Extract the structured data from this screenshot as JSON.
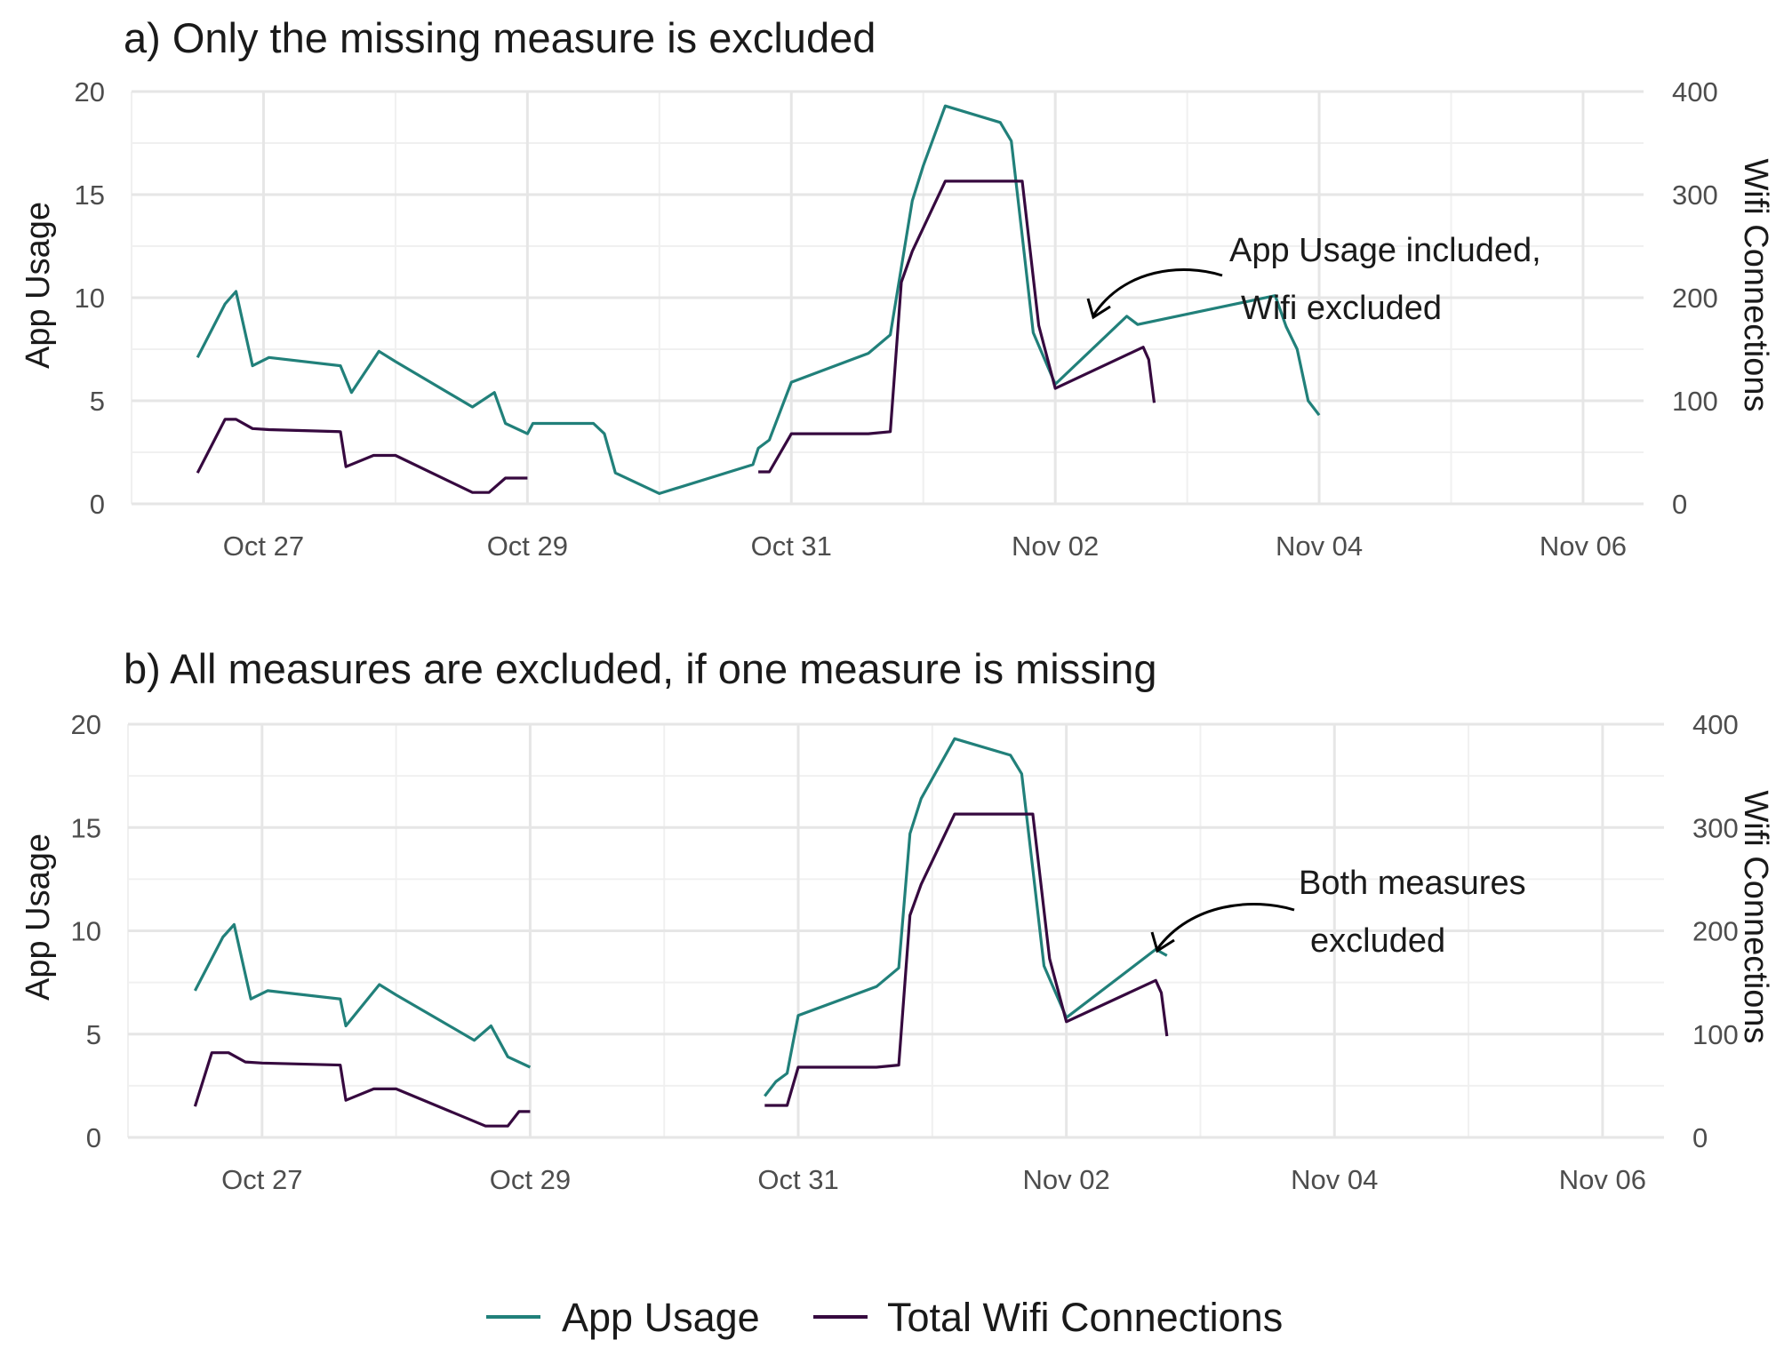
{
  "colors": {
    "app": "#21807a",
    "wifi": "#36093f"
  },
  "legend": {
    "position": "bottom",
    "items": [
      {
        "key": "app",
        "label": "App Usage"
      },
      {
        "key": "wifi",
        "label": "Total Wifi Connections"
      }
    ]
  },
  "chart_data": [
    {
      "type": "line",
      "title": "a) Only the missing measure is excluded",
      "ylabel": "App Usage",
      "y2label": "Wifi Connections",
      "ylim": [
        0,
        20
      ],
      "y2lim": [
        0,
        400
      ],
      "yticks": [
        0,
        5,
        10,
        15,
        20
      ],
      "y2ticks": [
        0,
        100,
        200,
        300,
        400
      ],
      "xlim": [
        "2023-10-26 00:00",
        "2023-11-06 11:00"
      ],
      "xticks": [
        {
          "at": "2023-10-27 00:00",
          "label": "Oct 27"
        },
        {
          "at": "2023-10-29 00:00",
          "label": "Oct 29"
        },
        {
          "at": "2023-10-31 00:00",
          "label": "Oct 31"
        },
        {
          "at": "2023-11-02 00:00",
          "label": "Nov 02"
        },
        {
          "at": "2023-11-04 00:00",
          "label": "Nov 04"
        },
        {
          "at": "2023-11-06 00:00",
          "label": "Nov 06"
        }
      ],
      "grid": true,
      "series": [
        {
          "name": "App Usage",
          "key": "app",
          "axis": "left",
          "segments": [
            [
              [
                "2023-10-26 12:00",
                7.1
              ],
              [
                "2023-10-26 17:00",
                9.7
              ],
              [
                "2023-10-26 19:00",
                10.3
              ],
              [
                "2023-10-26 22:00",
                6.7
              ],
              [
                "2023-10-27 01:00",
                7.1
              ],
              [
                "2023-10-27 14:00",
                6.7
              ],
              [
                "2023-10-27 16:00",
                5.4
              ],
              [
                "2023-10-27 21:00",
                7.4
              ],
              [
                "2023-10-28 00:00",
                6.9
              ],
              [
                "2023-10-28 14:00",
                4.7
              ],
              [
                "2023-10-28 18:00",
                5.4
              ],
              [
                "2023-10-28 20:00",
                3.9
              ],
              [
                "2023-10-29 00:00",
                3.4
              ],
              [
                "2023-10-29 01:00",
                3.9
              ],
              [
                "2023-10-29 12:00",
                3.9
              ],
              [
                "2023-10-29 14:00",
                3.4
              ],
              [
                "2023-10-29 16:00",
                1.5
              ],
              [
                "2023-10-30 00:00",
                0.5
              ],
              [
                "2023-10-30 17:00",
                1.9
              ],
              [
                "2023-10-30 18:00",
                2.7
              ],
              [
                "2023-10-30 20:00",
                3.1
              ],
              [
                "2023-10-31 00:00",
                5.9
              ],
              [
                "2023-10-31 14:00",
                7.3
              ],
              [
                "2023-10-31 18:00",
                8.2
              ],
              [
                "2023-10-31 22:00",
                14.7
              ],
              [
                "2023-11-01 00:00",
                16.4
              ],
              [
                "2023-11-01 04:00",
                19.3
              ],
              [
                "2023-11-01 14:00",
                18.5
              ],
              [
                "2023-11-01 16:00",
                17.6
              ],
              [
                "2023-11-01 18:00",
                13.0
              ],
              [
                "2023-11-01 20:00",
                8.3
              ],
              [
                "2023-11-02 00:00",
                5.8
              ],
              [
                "2023-11-02 13:00",
                9.1
              ],
              [
                "2023-11-02 15:00",
                8.7
              ],
              [
                "2023-11-03 16:00",
                10.1
              ],
              [
                "2023-11-03 18:00",
                8.6
              ],
              [
                "2023-11-03 20:00",
                7.5
              ],
              [
                "2023-11-03 22:00",
                5.0
              ],
              [
                "2023-11-04 00:00",
                4.3
              ]
            ]
          ]
        },
        {
          "name": "Total Wifi Connections",
          "key": "wifi",
          "axis": "right",
          "segments": [
            [
              [
                "2023-10-26 12:00",
                30
              ],
              [
                "2023-10-26 17:00",
                82
              ],
              [
                "2023-10-26 19:00",
                82
              ],
              [
                "2023-10-26 22:00",
                73
              ],
              [
                "2023-10-27 01:00",
                72
              ],
              [
                "2023-10-27 14:00",
                70
              ],
              [
                "2023-10-27 15:00",
                36
              ],
              [
                "2023-10-27 20:00",
                47
              ],
              [
                "2023-10-28 00:00",
                47
              ],
              [
                "2023-10-28 14:00",
                11
              ],
              [
                "2023-10-28 17:00",
                11
              ],
              [
                "2023-10-28 20:00",
                25
              ],
              [
                "2023-10-29 00:00",
                25
              ]
            ],
            [
              [
                "2023-10-30 18:00",
                31
              ],
              [
                "2023-10-30 20:00",
                31
              ],
              [
                "2023-10-31 00:00",
                68
              ],
              [
                "2023-10-31 14:00",
                68
              ],
              [
                "2023-10-31 18:00",
                70
              ],
              [
                "2023-10-31 20:00",
                215
              ],
              [
                "2023-10-31 22:00",
                245
              ],
              [
                "2023-11-01 04:00",
                313
              ],
              [
                "2023-11-01 18:00",
                313
              ],
              [
                "2023-11-01 21:00",
                173
              ],
              [
                "2023-11-02 00:00",
                112
              ],
              [
                "2023-11-02 16:00",
                152
              ],
              [
                "2023-11-02 17:00",
                140
              ],
              [
                "2023-11-02 18:00",
                98
              ]
            ]
          ]
        }
      ],
      "annotation": {
        "lines": [
          "App Usage included,",
          "Wifi excluded"
        ]
      }
    },
    {
      "type": "line",
      "title": "b) All measures are excluded, if one measure is missing",
      "ylabel": "App Usage",
      "y2label": "Wifi Connections",
      "ylim": [
        0,
        20
      ],
      "y2lim": [
        0,
        400
      ],
      "yticks": [
        0,
        5,
        10,
        15,
        20
      ],
      "y2ticks": [
        0,
        100,
        200,
        300,
        400
      ],
      "xlim": [
        "2023-10-26 00:00",
        "2023-11-06 11:00"
      ],
      "xticks": [
        {
          "at": "2023-10-27 00:00",
          "label": "Oct 27"
        },
        {
          "at": "2023-10-29 00:00",
          "label": "Oct 29"
        },
        {
          "at": "2023-10-31 00:00",
          "label": "Oct 31"
        },
        {
          "at": "2023-11-02 00:00",
          "label": "Nov 02"
        },
        {
          "at": "2023-11-04 00:00",
          "label": "Nov 04"
        },
        {
          "at": "2023-11-06 00:00",
          "label": "Nov 06"
        }
      ],
      "grid": true,
      "series": [
        {
          "name": "App Usage",
          "key": "app",
          "axis": "left",
          "segments": [
            [
              [
                "2023-10-26 12:00",
                7.1
              ],
              [
                "2023-10-26 17:00",
                9.7
              ],
              [
                "2023-10-26 19:00",
                10.3
              ],
              [
                "2023-10-26 22:00",
                6.7
              ],
              [
                "2023-10-27 01:00",
                7.1
              ],
              [
                "2023-10-27 14:00",
                6.7
              ],
              [
                "2023-10-27 15:00",
                5.4
              ],
              [
                "2023-10-27 21:00",
                7.4
              ],
              [
                "2023-10-28 00:00",
                6.9
              ],
              [
                "2023-10-28 14:00",
                4.7
              ],
              [
                "2023-10-28 17:00",
                5.4
              ],
              [
                "2023-10-28 20:00",
                3.9
              ],
              [
                "2023-10-29 00:00",
                3.4
              ]
            ],
            [
              [
                "2023-10-30 18:00",
                2.0
              ],
              [
                "2023-10-30 20:00",
                2.7
              ],
              [
                "2023-10-30 22:00",
                3.1
              ],
              [
                "2023-10-31 00:00",
                5.9
              ],
              [
                "2023-10-31 14:00",
                7.3
              ],
              [
                "2023-10-31 18:00",
                8.2
              ],
              [
                "2023-10-31 20:00",
                14.7
              ],
              [
                "2023-10-31 22:00",
                16.4
              ],
              [
                "2023-11-01 04:00",
                19.3
              ],
              [
                "2023-11-01 14:00",
                18.5
              ],
              [
                "2023-11-01 16:00",
                17.6
              ],
              [
                "2023-11-01 18:00",
                13.0
              ],
              [
                "2023-11-01 20:00",
                8.3
              ],
              [
                "2023-11-02 00:00",
                5.8
              ],
              [
                "2023-11-02 16:00",
                9.1
              ],
              [
                "2023-11-02 18:00",
                8.8
              ]
            ]
          ]
        },
        {
          "name": "Total Wifi Connections",
          "key": "wifi",
          "axis": "right",
          "segments": [
            [
              [
                "2023-10-26 12:00",
                30
              ],
              [
                "2023-10-26 15:00",
                82
              ],
              [
                "2023-10-26 18:00",
                82
              ],
              [
                "2023-10-26 21:00",
                73
              ],
              [
                "2023-10-27 00:00",
                72
              ],
              [
                "2023-10-27 14:00",
                70
              ],
              [
                "2023-10-27 15:00",
                36
              ],
              [
                "2023-10-27 20:00",
                47
              ],
              [
                "2023-10-28 00:00",
                47
              ],
              [
                "2023-10-28 16:00",
                11
              ],
              [
                "2023-10-28 20:00",
                11
              ],
              [
                "2023-10-28 22:00",
                25
              ],
              [
                "2023-10-29 00:00",
                25
              ]
            ],
            [
              [
                "2023-10-30 18:00",
                31
              ],
              [
                "2023-10-30 22:00",
                31
              ],
              [
                "2023-10-31 00:00",
                68
              ],
              [
                "2023-10-31 14:00",
                68
              ],
              [
                "2023-10-31 18:00",
                70
              ],
              [
                "2023-10-31 20:00",
                215
              ],
              [
                "2023-10-31 22:00",
                245
              ],
              [
                "2023-11-01 04:00",
                313
              ],
              [
                "2023-11-01 18:00",
                313
              ],
              [
                "2023-11-01 21:00",
                173
              ],
              [
                "2023-11-02 00:00",
                112
              ],
              [
                "2023-11-02 16:00",
                152
              ],
              [
                "2023-11-02 17:00",
                140
              ],
              [
                "2023-11-02 18:00",
                98
              ]
            ]
          ]
        }
      ],
      "annotation": {
        "lines": [
          "Both measures",
          "excluded"
        ]
      }
    }
  ]
}
